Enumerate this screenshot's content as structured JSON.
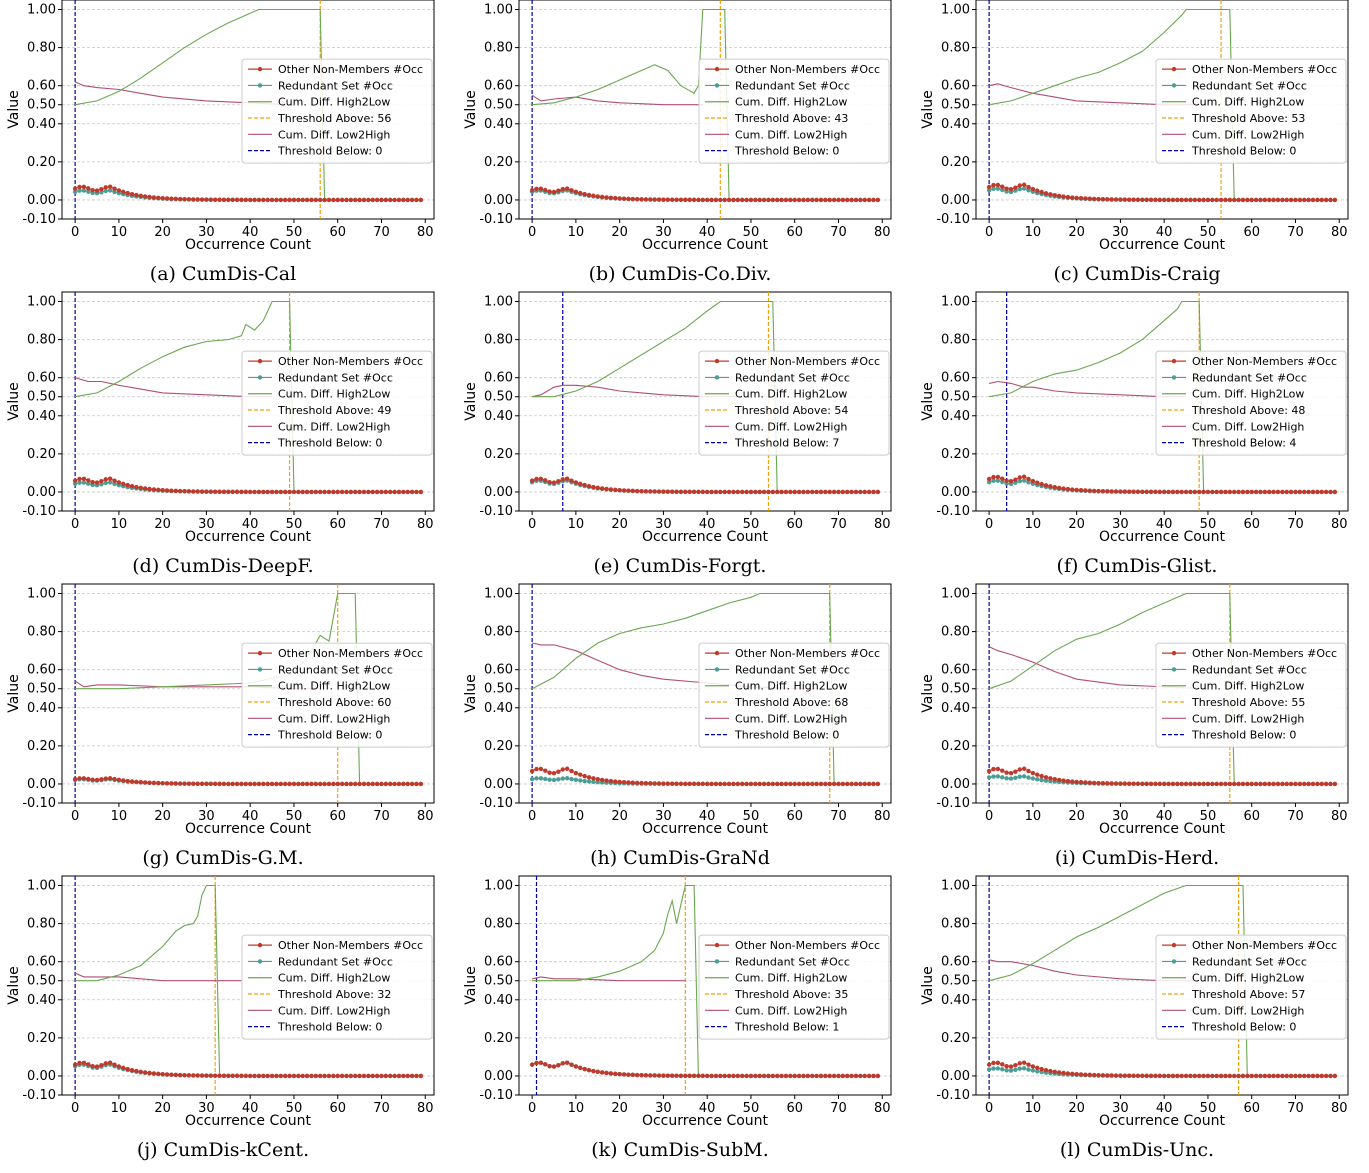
{
  "figure": {
    "panel_count": 12,
    "grid": {
      "columns": 3,
      "rows": 4
    }
  },
  "colors": {
    "other_non_members": "#c0392b",
    "redundant_set": "#4a9e96",
    "high2low": "#6aa84f",
    "threshold_above": "#f0a30a",
    "low2high": "#b24d78",
    "threshold_below": "#0000aa",
    "grid": "#c8c8c8"
  },
  "axes": {
    "xlabel": "Occurrence Count",
    "ylabel": "Value",
    "xticks": [
      "0",
      "10",
      "20",
      "30",
      "40",
      "50",
      "60",
      "70",
      "80"
    ],
    "yticks": [
      "-0.10",
      "0.00",
      "0.20",
      "0.40",
      "0.50",
      "0.60",
      "0.80",
      "1.00"
    ],
    "legend_labels": {
      "other": "Other Non-Members #Occ",
      "redundant": "Redundant Set #Occ",
      "high2low": "Cum. Diff. High2Low",
      "threshold_above_prefix": "Threshold Above: ",
      "low2high": "Cum. Diff. Low2High",
      "threshold_below_prefix": "Threshold Below: "
    }
  },
  "chart_data": [
    {
      "type": "line",
      "caption": "(a) CumDis-Cal",
      "xlim": [
        -3,
        82
      ],
      "ylim": [
        -0.1,
        1.05
      ],
      "grid": true,
      "legend": "center-right",
      "threshold_above": 56,
      "threshold_below": 0,
      "high2low": [
        [
          0,
          0.5
        ],
        [
          5,
          0.52
        ],
        [
          10,
          0.57
        ],
        [
          15,
          0.64
        ],
        [
          20,
          0.72
        ],
        [
          25,
          0.8
        ],
        [
          30,
          0.87
        ],
        [
          35,
          0.93
        ],
        [
          40,
          0.98
        ],
        [
          42,
          1.0
        ],
        [
          56,
          1.0
        ],
        [
          57,
          0.0
        ]
      ],
      "low2high": [
        [
          0,
          0.62
        ],
        [
          2,
          0.6
        ],
        [
          5,
          0.59
        ],
        [
          10,
          0.58
        ],
        [
          15,
          0.56
        ],
        [
          20,
          0.54
        ],
        [
          30,
          0.52
        ],
        [
          40,
          0.51
        ],
        [
          48,
          0.5
        ]
      ],
      "other_peak": 0.07,
      "redundant_peak": 0.05
    },
    {
      "type": "line",
      "caption": "(b) CumDis-Co.Div.",
      "xlim": [
        -3,
        82
      ],
      "ylim": [
        -0.1,
        1.05
      ],
      "grid": true,
      "legend": "center-right",
      "threshold_above": 43,
      "threshold_below": 0,
      "high2low": [
        [
          0,
          0.5
        ],
        [
          5,
          0.51
        ],
        [
          10,
          0.54
        ],
        [
          15,
          0.58
        ],
        [
          20,
          0.63
        ],
        [
          25,
          0.68
        ],
        [
          28,
          0.71
        ],
        [
          31,
          0.68
        ],
        [
          34,
          0.6
        ],
        [
          37,
          0.56
        ],
        [
          38,
          0.6
        ],
        [
          39,
          1.0
        ],
        [
          44,
          1.0
        ],
        [
          45,
          0.0
        ]
      ],
      "low2high": [
        [
          0,
          0.55
        ],
        [
          2,
          0.52
        ],
        [
          5,
          0.53
        ],
        [
          10,
          0.54
        ],
        [
          15,
          0.52
        ],
        [
          20,
          0.51
        ],
        [
          30,
          0.5
        ],
        [
          39,
          0.5
        ]
      ],
      "other_peak": 0.06,
      "redundant_peak": 0.05
    },
    {
      "type": "line",
      "caption": "(c) CumDis-Craig",
      "xlim": [
        -3,
        82
      ],
      "ylim": [
        -0.1,
        1.05
      ],
      "grid": true,
      "legend": "center-right",
      "threshold_above": 53,
      "threshold_below": 0,
      "high2low": [
        [
          0,
          0.5
        ],
        [
          5,
          0.52
        ],
        [
          10,
          0.56
        ],
        [
          15,
          0.6
        ],
        [
          20,
          0.64
        ],
        [
          25,
          0.67
        ],
        [
          30,
          0.72
        ],
        [
          35,
          0.78
        ],
        [
          40,
          0.88
        ],
        [
          44,
          0.97
        ],
        [
          45,
          1.0
        ],
        [
          55,
          1.0
        ],
        [
          56,
          0.0
        ]
      ],
      "low2high": [
        [
          0,
          0.6
        ],
        [
          2,
          0.61
        ],
        [
          5,
          0.59
        ],
        [
          10,
          0.56
        ],
        [
          15,
          0.54
        ],
        [
          20,
          0.52
        ],
        [
          30,
          0.51
        ],
        [
          40,
          0.5
        ],
        [
          48,
          0.5
        ]
      ],
      "other_peak": 0.08,
      "redundant_peak": 0.06
    },
    {
      "type": "line",
      "caption": "(d) CumDis-DeepF.",
      "xlim": [
        -3,
        82
      ],
      "ylim": [
        -0.1,
        1.05
      ],
      "grid": true,
      "legend": "center-right",
      "threshold_above": 49,
      "threshold_below": 0,
      "high2low": [
        [
          0,
          0.5
        ],
        [
          5,
          0.52
        ],
        [
          10,
          0.58
        ],
        [
          15,
          0.65
        ],
        [
          20,
          0.71
        ],
        [
          25,
          0.76
        ],
        [
          30,
          0.79
        ],
        [
          35,
          0.8
        ],
        [
          38,
          0.82
        ],
        [
          39,
          0.88
        ],
        [
          41,
          0.85
        ],
        [
          43,
          0.9
        ],
        [
          45,
          1.0
        ],
        [
          49,
          1.0
        ],
        [
          50,
          0.0
        ]
      ],
      "low2high": [
        [
          0,
          0.6
        ],
        [
          3,
          0.58
        ],
        [
          6,
          0.58
        ],
        [
          10,
          0.56
        ],
        [
          15,
          0.54
        ],
        [
          20,
          0.52
        ],
        [
          30,
          0.51
        ],
        [
          40,
          0.5
        ],
        [
          45,
          0.5
        ]
      ],
      "other_peak": 0.07,
      "redundant_peak": 0.05
    },
    {
      "type": "line",
      "caption": "(e) CumDis-Forgt.",
      "xlim": [
        -3,
        82
      ],
      "ylim": [
        -0.1,
        1.05
      ],
      "grid": true,
      "legend": "center-right",
      "threshold_above": 54,
      "threshold_below": 7,
      "high2low": [
        [
          0,
          0.5
        ],
        [
          5,
          0.5
        ],
        [
          10,
          0.53
        ],
        [
          15,
          0.58
        ],
        [
          20,
          0.65
        ],
        [
          25,
          0.72
        ],
        [
          30,
          0.79
        ],
        [
          35,
          0.86
        ],
        [
          40,
          0.95
        ],
        [
          43,
          1.0
        ],
        [
          55,
          1.0
        ],
        [
          56,
          0.0
        ]
      ],
      "low2high": [
        [
          0,
          0.5
        ],
        [
          2,
          0.51
        ],
        [
          5,
          0.55
        ],
        [
          7,
          0.56
        ],
        [
          10,
          0.56
        ],
        [
          15,
          0.55
        ],
        [
          20,
          0.53
        ],
        [
          30,
          0.51
        ],
        [
          40,
          0.5
        ],
        [
          48,
          0.5
        ]
      ],
      "other_peak": 0.07,
      "redundant_peak": 0.06
    },
    {
      "type": "line",
      "caption": "(f) CumDis-Glist.",
      "xlim": [
        -3,
        82
      ],
      "ylim": [
        -0.1,
        1.05
      ],
      "grid": true,
      "legend": "center-right",
      "threshold_above": 48,
      "threshold_below": 4,
      "high2low": [
        [
          0,
          0.5
        ],
        [
          5,
          0.52
        ],
        [
          10,
          0.58
        ],
        [
          15,
          0.62
        ],
        [
          20,
          0.64
        ],
        [
          25,
          0.68
        ],
        [
          30,
          0.73
        ],
        [
          35,
          0.8
        ],
        [
          40,
          0.9
        ],
        [
          43,
          0.96
        ],
        [
          44,
          1.0
        ],
        [
          48,
          1.0
        ],
        [
          49,
          0.0
        ]
      ],
      "low2high": [
        [
          0,
          0.57
        ],
        [
          2,
          0.58
        ],
        [
          5,
          0.57
        ],
        [
          8,
          0.55
        ],
        [
          10,
          0.55
        ],
        [
          15,
          0.53
        ],
        [
          20,
          0.52
        ],
        [
          30,
          0.51
        ],
        [
          40,
          0.5
        ],
        [
          45,
          0.5
        ]
      ],
      "other_peak": 0.08,
      "redundant_peak": 0.06
    },
    {
      "type": "line",
      "caption": "(g) CumDis-G.M.",
      "xlim": [
        -3,
        82
      ],
      "ylim": [
        -0.1,
        1.05
      ],
      "grid": true,
      "legend": "center-right",
      "threshold_above": 60,
      "threshold_below": 0,
      "high2low": [
        [
          0,
          0.5
        ],
        [
          10,
          0.5
        ],
        [
          20,
          0.51
        ],
        [
          30,
          0.52
        ],
        [
          40,
          0.53
        ],
        [
          50,
          0.58
        ],
        [
          54,
          0.7
        ],
        [
          56,
          0.78
        ],
        [
          58,
          0.75
        ],
        [
          60,
          1.0
        ],
        [
          64,
          1.0
        ],
        [
          65,
          0.0
        ]
      ],
      "low2high": [
        [
          0,
          0.54
        ],
        [
          2,
          0.51
        ],
        [
          5,
          0.52
        ],
        [
          10,
          0.52
        ],
        [
          20,
          0.51
        ],
        [
          30,
          0.51
        ],
        [
          40,
          0.51
        ],
        [
          50,
          0.5
        ],
        [
          55,
          0.5
        ]
      ],
      "other_peak": 0.03,
      "redundant_peak": 0.025
    },
    {
      "type": "line",
      "caption": "(h) CumDis-GraNd",
      "xlim": [
        -3,
        82
      ],
      "ylim": [
        -0.1,
        1.05
      ],
      "grid": true,
      "legend": "center-right",
      "threshold_above": 68,
      "threshold_below": 0,
      "high2low": [
        [
          0,
          0.5
        ],
        [
          5,
          0.56
        ],
        [
          10,
          0.66
        ],
        [
          15,
          0.74
        ],
        [
          20,
          0.79
        ],
        [
          25,
          0.82
        ],
        [
          30,
          0.84
        ],
        [
          35,
          0.87
        ],
        [
          40,
          0.91
        ],
        [
          45,
          0.95
        ],
        [
          50,
          0.98
        ],
        [
          52,
          1.0
        ],
        [
          68,
          1.0
        ],
        [
          69,
          0.0
        ]
      ],
      "low2high": [
        [
          0,
          0.74
        ],
        [
          2,
          0.73
        ],
        [
          5,
          0.73
        ],
        [
          10,
          0.7
        ],
        [
          15,
          0.65
        ],
        [
          20,
          0.6
        ],
        [
          25,
          0.57
        ],
        [
          30,
          0.55
        ],
        [
          40,
          0.53
        ],
        [
          50,
          0.51
        ],
        [
          60,
          0.5
        ],
        [
          65,
          0.5
        ]
      ],
      "other_peak": 0.08,
      "redundant_peak": 0.03
    },
    {
      "type": "line",
      "caption": "(i) CumDis-Herd.",
      "xlim": [
        -3,
        82
      ],
      "ylim": [
        -0.1,
        1.05
      ],
      "grid": true,
      "legend": "center-right",
      "threshold_above": 55,
      "threshold_below": 0,
      "high2low": [
        [
          0,
          0.5
        ],
        [
          5,
          0.54
        ],
        [
          10,
          0.62
        ],
        [
          15,
          0.7
        ],
        [
          20,
          0.76
        ],
        [
          25,
          0.79
        ],
        [
          30,
          0.84
        ],
        [
          35,
          0.9
        ],
        [
          40,
          0.95
        ],
        [
          45,
          1.0
        ],
        [
          55,
          1.0
        ],
        [
          56,
          0.0
        ]
      ],
      "low2high": [
        [
          0,
          0.72
        ],
        [
          2,
          0.7
        ],
        [
          5,
          0.68
        ],
        [
          10,
          0.64
        ],
        [
          15,
          0.59
        ],
        [
          20,
          0.55
        ],
        [
          30,
          0.52
        ],
        [
          40,
          0.51
        ],
        [
          50,
          0.5
        ]
      ],
      "other_peak": 0.08,
      "redundant_peak": 0.04
    },
    {
      "type": "line",
      "caption": "(j) CumDis-kCent.",
      "xlim": [
        -3,
        82
      ],
      "ylim": [
        -0.1,
        1.05
      ],
      "grid": true,
      "legend": "center-right",
      "threshold_above": 32,
      "threshold_below": 0,
      "high2low": [
        [
          0,
          0.5
        ],
        [
          5,
          0.5
        ],
        [
          10,
          0.53
        ],
        [
          15,
          0.58
        ],
        [
          18,
          0.64
        ],
        [
          20,
          0.68
        ],
        [
          23,
          0.76
        ],
        [
          25,
          0.79
        ],
        [
          27,
          0.8
        ],
        [
          28,
          0.84
        ],
        [
          29,
          0.95
        ],
        [
          30,
          1.0
        ],
        [
          32,
          1.0
        ],
        [
          33,
          0.0
        ]
      ],
      "low2high": [
        [
          0,
          0.54
        ],
        [
          2,
          0.52
        ],
        [
          5,
          0.52
        ],
        [
          10,
          0.52
        ],
        [
          15,
          0.51
        ],
        [
          20,
          0.5
        ],
        [
          30,
          0.5
        ],
        [
          38,
          0.5
        ]
      ],
      "other_peak": 0.07,
      "redundant_peak": 0.06
    },
    {
      "type": "line",
      "caption": "(k) CumDis-SubM.",
      "xlim": [
        -3,
        82
      ],
      "ylim": [
        -0.1,
        1.05
      ],
      "grid": true,
      "legend": "center-right",
      "threshold_above": 35,
      "threshold_below": 1,
      "high2low": [
        [
          0,
          0.5
        ],
        [
          10,
          0.5
        ],
        [
          15,
          0.52
        ],
        [
          20,
          0.55
        ],
        [
          25,
          0.6
        ],
        [
          28,
          0.66
        ],
        [
          30,
          0.75
        ],
        [
          31,
          0.85
        ],
        [
          32,
          0.92
        ],
        [
          33,
          0.8
        ],
        [
          34,
          0.9
        ],
        [
          35,
          1.0
        ],
        [
          37,
          1.0
        ],
        [
          38,
          0.0
        ]
      ],
      "low2high": [
        [
          0,
          0.51
        ],
        [
          2,
          0.52
        ],
        [
          5,
          0.51
        ],
        [
          10,
          0.51
        ],
        [
          20,
          0.5
        ],
        [
          30,
          0.5
        ],
        [
          35,
          0.5
        ]
      ],
      "other_peak": 0.07,
      "redundant_peak": 0.07
    },
    {
      "type": "line",
      "caption": "(l) CumDis-Unc.",
      "xlim": [
        -3,
        82
      ],
      "ylim": [
        -0.1,
        1.05
      ],
      "grid": true,
      "legend": "center-right",
      "threshold_above": 57,
      "threshold_below": 0,
      "high2low": [
        [
          0,
          0.5
        ],
        [
          5,
          0.53
        ],
        [
          10,
          0.59
        ],
        [
          15,
          0.66
        ],
        [
          20,
          0.73
        ],
        [
          25,
          0.78
        ],
        [
          30,
          0.84
        ],
        [
          35,
          0.9
        ],
        [
          40,
          0.96
        ],
        [
          45,
          1.0
        ],
        [
          58,
          1.0
        ],
        [
          59,
          0.0
        ]
      ],
      "low2high": [
        [
          0,
          0.61
        ],
        [
          2,
          0.6
        ],
        [
          5,
          0.6
        ],
        [
          10,
          0.58
        ],
        [
          15,
          0.55
        ],
        [
          20,
          0.53
        ],
        [
          30,
          0.51
        ],
        [
          40,
          0.5
        ],
        [
          48,
          0.5
        ]
      ],
      "other_peak": 0.07,
      "redundant_peak": 0.04
    }
  ]
}
